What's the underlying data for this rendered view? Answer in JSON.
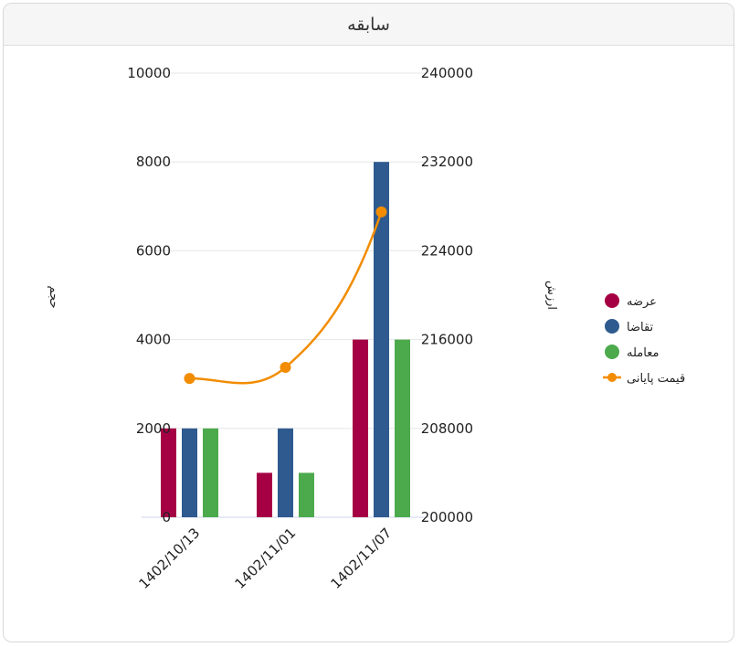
{
  "panel": {
    "title": "سابقه"
  },
  "chart_data": {
    "type": "bar",
    "categories": [
      "1402/10/13",
      "1402/11/01",
      "1402/11/07"
    ],
    "series": [
      {
        "name": "عرضه",
        "type": "bar",
        "axis": "left",
        "color": "#a50044",
        "values": [
          2000,
          1000,
          4000
        ]
      },
      {
        "name": "تقاضا",
        "type": "bar",
        "axis": "left",
        "color": "#2e5a8f",
        "values": [
          2000,
          2000,
          8000
        ]
      },
      {
        "name": "معامله",
        "type": "bar",
        "axis": "left",
        "color": "#4caa4c",
        "values": [
          2000,
          1000,
          4000
        ]
      },
      {
        "name": "قیمت پایانی",
        "type": "line",
        "axis": "right",
        "color": "#f28c00",
        "values": [
          212500,
          213500,
          227500
        ]
      }
    ],
    "y_left": {
      "label": "حجم",
      "min": 0,
      "max": 10000,
      "ticks": [
        0,
        2000,
        4000,
        6000,
        8000,
        10000
      ]
    },
    "y_right": {
      "label": "ارزش",
      "min": 200000,
      "max": 240000,
      "ticks": [
        200000,
        208000,
        216000,
        224000,
        232000,
        240000
      ]
    },
    "grid": true,
    "legend": "right"
  }
}
